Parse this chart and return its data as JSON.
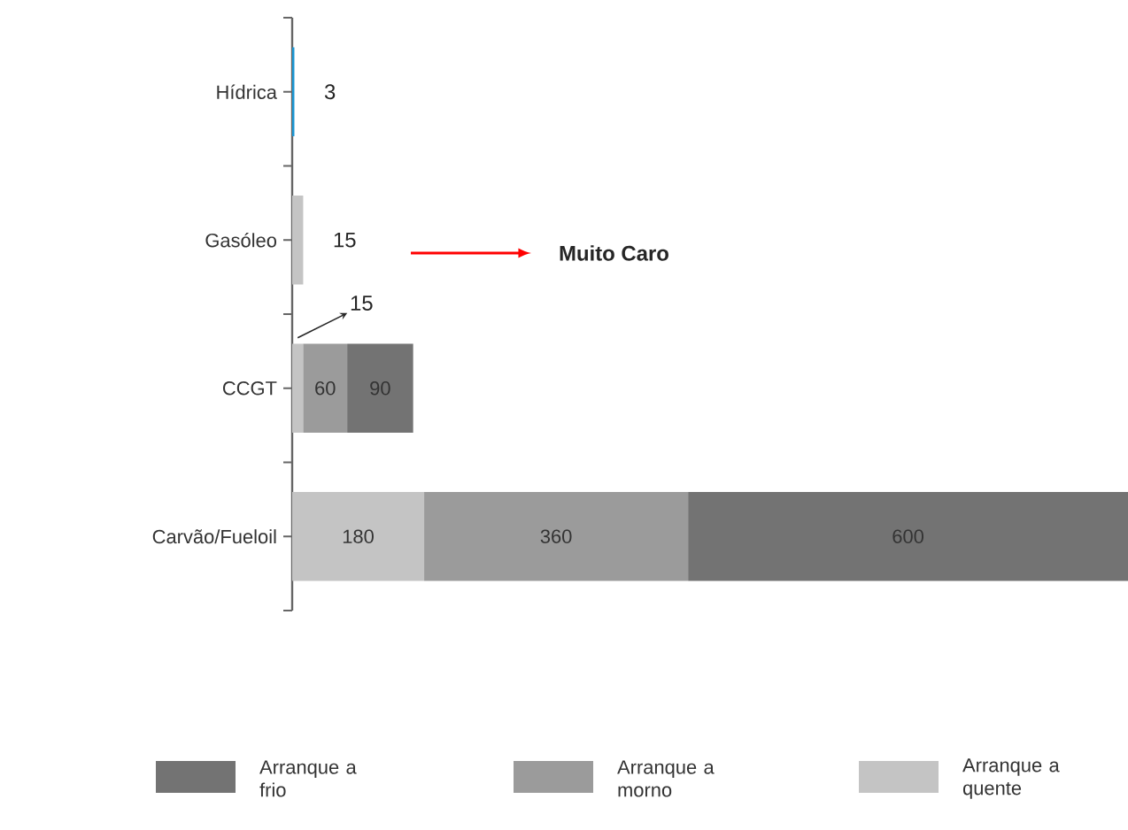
{
  "chart_data": {
    "type": "bar",
    "orientation": "horizontal",
    "stacked": true,
    "legend": "bottom",
    "categories": [
      "Hídrica",
      "Gasóleo",
      "CCGT",
      "Carvão/Fueloil"
    ],
    "xlim": [
      0,
      1140
    ],
    "series": [
      {
        "name": "Arranque a quente",
        "color": "#c4c4c4",
        "colors": [
          "#1b97d4",
          "#c4c4c4",
          "#c4c4c4",
          "#c4c4c4"
        ],
        "values": [
          3,
          15,
          15,
          180
        ],
        "value_labels": [
          "3",
          "15",
          "15",
          "180"
        ]
      },
      {
        "name": "Arranque a morno",
        "color": "#9b9b9b",
        "values": [
          null,
          null,
          60,
          360
        ],
        "value_labels": [
          null,
          null,
          "60",
          "360"
        ]
      },
      {
        "name": "Arranque a frio",
        "color": "#737373",
        "values": [
          null,
          null,
          90,
          600
        ],
        "value_labels": [
          null,
          null,
          "90",
          "600"
        ]
      }
    ],
    "annotations": [
      "Muito Caro"
    ]
  }
}
